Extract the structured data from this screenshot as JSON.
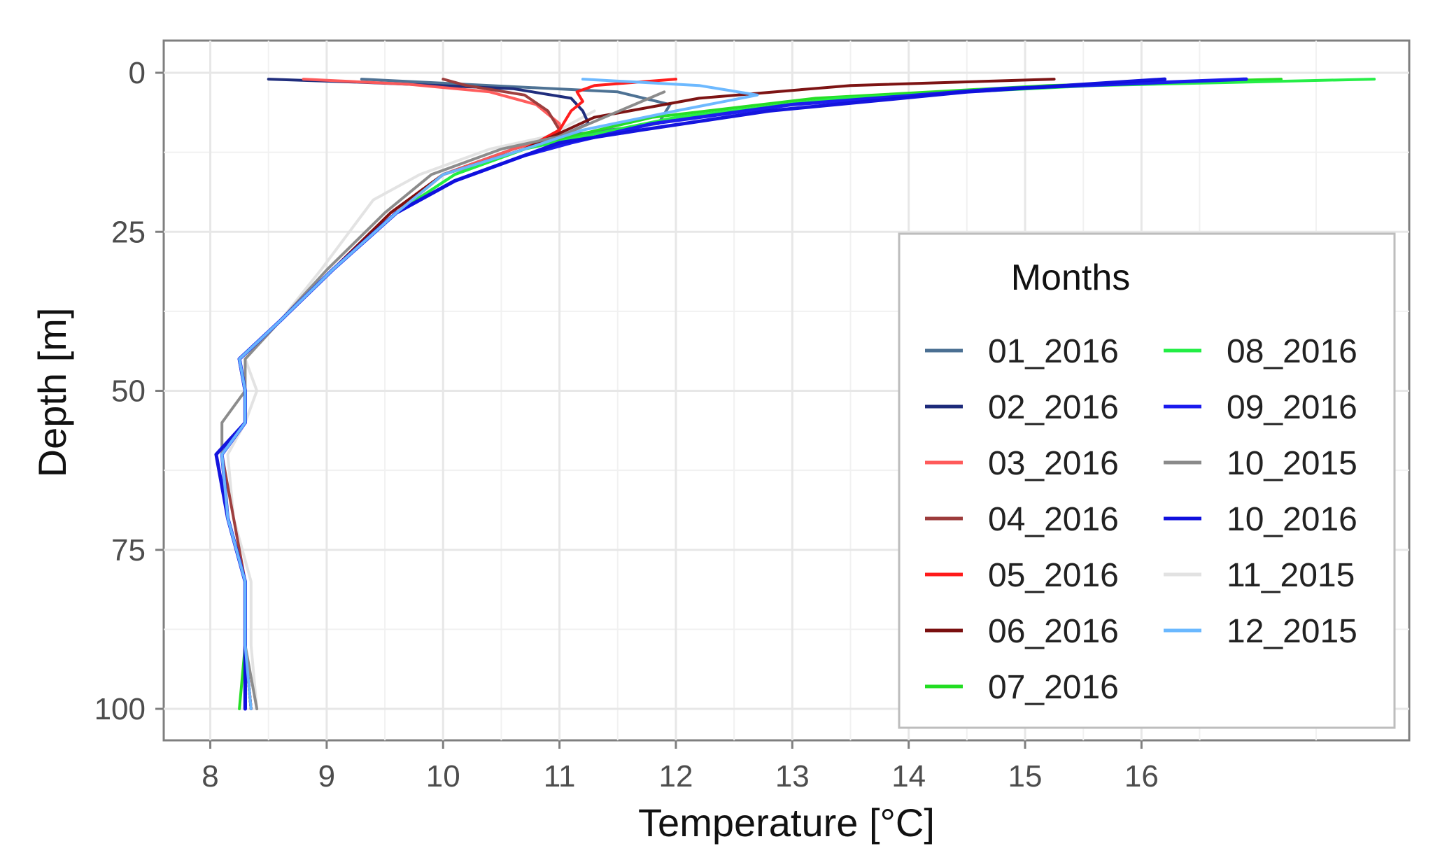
{
  "chart_data": {
    "type": "line",
    "orientation": "depth-profile",
    "title": "",
    "xlabel": "Temperature [°C]",
    "ylabel": "Depth [m]",
    "xlim": [
      7.6,
      18.3
    ],
    "ylim": [
      100,
      0
    ],
    "grid": true,
    "legend": {
      "title": "Months",
      "placement": "right"
    },
    "x_ticks": [
      {
        "value": 8,
        "label": "8"
      },
      {
        "value": 9,
        "label": "9"
      },
      {
        "value": 10,
        "label": "10"
      },
      {
        "value": 11,
        "label": "11"
      },
      {
        "value": 12,
        "label": "12"
      },
      {
        "value": 13,
        "label": "13"
      },
      {
        "value": 14,
        "label": "14"
      },
      {
        "value": 15,
        "label": "15"
      },
      {
        "value": 16,
        "label": "16"
      }
    ],
    "y_ticks": [
      {
        "value": 0,
        "label": "0"
      },
      {
        "value": 25,
        "label": "25"
      },
      {
        "value": 50,
        "label": "50"
      },
      {
        "value": 75,
        "label": "75"
      },
      {
        "value": 100,
        "label": "100"
      }
    ],
    "series": [
      {
        "name": "01_2016",
        "color": "#4a6f92",
        "points": [
          [
            9.3,
            1
          ],
          [
            10.4,
            2
          ],
          [
            11.5,
            3
          ],
          [
            11.95,
            5
          ],
          [
            11.85,
            8
          ],
          [
            11.0,
            10
          ],
          [
            10.6,
            12
          ],
          [
            10.0,
            16
          ],
          [
            9.6,
            22
          ],
          [
            9.05,
            31
          ],
          [
            8.6,
            39
          ],
          [
            8.25,
            45
          ],
          [
            8.3,
            50
          ],
          [
            8.3,
            55
          ],
          [
            8.1,
            60
          ],
          [
            8.15,
            70
          ],
          [
            8.3,
            80
          ],
          [
            8.3,
            90
          ],
          [
            8.35,
            100
          ]
        ]
      },
      {
        "name": "02_2016",
        "color": "#1c2a7a",
        "points": [
          [
            8.5,
            1
          ],
          [
            9.3,
            1.5
          ],
          [
            10.6,
            2.5
          ],
          [
            11.1,
            4
          ],
          [
            11.2,
            6
          ],
          [
            11.25,
            8
          ],
          [
            11.0,
            10
          ],
          [
            10.6,
            12
          ],
          [
            10.0,
            16
          ],
          [
            9.6,
            22
          ],
          [
            9.05,
            31
          ],
          [
            8.6,
            39
          ],
          [
            8.25,
            45
          ],
          [
            8.3,
            50
          ],
          [
            8.3,
            55
          ],
          [
            8.1,
            60
          ],
          [
            8.15,
            70
          ],
          [
            8.3,
            80
          ],
          [
            8.3,
            90
          ],
          [
            8.35,
            100
          ]
        ]
      },
      {
        "name": "03_2016",
        "color": "#ff5a5a",
        "points": [
          [
            8.8,
            1
          ],
          [
            9.7,
            1.8
          ],
          [
            10.4,
            3
          ],
          [
            10.8,
            5
          ],
          [
            11.0,
            8
          ],
          [
            11.0,
            10
          ],
          [
            10.6,
            12
          ],
          [
            10.0,
            16
          ],
          [
            9.6,
            22
          ],
          [
            9.05,
            31
          ],
          [
            8.6,
            39
          ],
          [
            8.25,
            45
          ],
          [
            8.3,
            50
          ],
          [
            8.3,
            55
          ],
          [
            8.1,
            60
          ],
          [
            8.15,
            70
          ],
          [
            8.3,
            80
          ],
          [
            8.3,
            90
          ],
          [
            8.35,
            100
          ]
        ]
      },
      {
        "name": "04_2016",
        "color": "#9c3b3b",
        "points": [
          [
            10.0,
            1
          ],
          [
            10.2,
            2
          ],
          [
            10.7,
            3.5
          ],
          [
            10.9,
            6
          ],
          [
            11.0,
            9
          ],
          [
            10.7,
            12
          ],
          [
            10.0,
            16
          ],
          [
            9.55,
            22
          ],
          [
            9.05,
            31
          ],
          [
            8.6,
            39
          ],
          [
            8.25,
            45
          ],
          [
            8.3,
            50
          ],
          [
            8.3,
            55
          ],
          [
            8.1,
            60
          ],
          [
            8.2,
            70
          ],
          [
            8.3,
            80
          ],
          [
            8.3,
            90
          ],
          [
            8.35,
            100
          ]
        ]
      },
      {
        "name": "05_2016",
        "color": "#ff1a1a",
        "points": [
          [
            12.0,
            1
          ],
          [
            11.3,
            2
          ],
          [
            11.15,
            3
          ],
          [
            11.2,
            4.5
          ],
          [
            11.1,
            6
          ],
          [
            11.0,
            9
          ],
          [
            10.7,
            12
          ],
          [
            10.0,
            16
          ],
          [
            9.55,
            22
          ],
          [
            9.05,
            31
          ],
          [
            8.6,
            39
          ],
          [
            8.25,
            45
          ],
          [
            8.3,
            50
          ],
          [
            8.3,
            55
          ],
          [
            8.1,
            60
          ],
          [
            8.15,
            70
          ],
          [
            8.3,
            80
          ],
          [
            8.3,
            90
          ],
          [
            8.35,
            100
          ]
        ]
      },
      {
        "name": "06_2016",
        "color": "#7a0f0f",
        "points": [
          [
            15.25,
            1
          ],
          [
            13.5,
            2
          ],
          [
            12.2,
            4
          ],
          [
            11.3,
            7
          ],
          [
            11.0,
            9.5
          ],
          [
            10.7,
            12
          ],
          [
            10.0,
            16
          ],
          [
            9.55,
            22
          ],
          [
            9.05,
            31
          ],
          [
            8.6,
            39
          ],
          [
            8.25,
            45
          ],
          [
            8.3,
            50
          ],
          [
            8.3,
            55
          ],
          [
            8.1,
            60
          ],
          [
            8.15,
            70
          ],
          [
            8.3,
            80
          ],
          [
            8.3,
            90
          ],
          [
            8.35,
            100
          ]
        ]
      },
      {
        "name": "07_2016",
        "color": "#22dd22",
        "points": [
          [
            17.2,
            1
          ],
          [
            15.2,
            2
          ],
          [
            13.2,
            4
          ],
          [
            11.8,
            7
          ],
          [
            11.1,
            10
          ],
          [
            10.7,
            12
          ],
          [
            10.1,
            16
          ],
          [
            9.6,
            22
          ],
          [
            9.05,
            31
          ],
          [
            8.6,
            39
          ],
          [
            8.25,
            45
          ],
          [
            8.3,
            50
          ],
          [
            8.3,
            55
          ],
          [
            8.1,
            60
          ],
          [
            8.15,
            70
          ],
          [
            8.3,
            80
          ],
          [
            8.3,
            90
          ],
          [
            8.25,
            100
          ]
        ]
      },
      {
        "name": "08_2016",
        "color": "#22ee44",
        "points": [
          [
            18.0,
            1
          ],
          [
            15.6,
            2
          ],
          [
            13.4,
            4
          ],
          [
            12.0,
            7
          ],
          [
            11.2,
            10
          ],
          [
            10.7,
            12
          ],
          [
            10.1,
            16
          ],
          [
            9.6,
            22
          ],
          [
            9.05,
            31
          ],
          [
            8.6,
            39
          ],
          [
            8.25,
            45
          ],
          [
            8.3,
            50
          ],
          [
            8.3,
            55
          ],
          [
            8.1,
            60
          ],
          [
            8.15,
            70
          ],
          [
            8.3,
            80
          ],
          [
            8.3,
            90
          ],
          [
            8.3,
            100
          ]
        ]
      },
      {
        "name": "09_2016",
        "color": "#1a1aee",
        "points": [
          [
            16.9,
            1
          ],
          [
            14.8,
            2.5
          ],
          [
            13.0,
            5
          ],
          [
            11.8,
            8
          ],
          [
            11.1,
            11
          ],
          [
            10.7,
            13
          ],
          [
            10.1,
            17
          ],
          [
            9.6,
            22
          ],
          [
            9.05,
            31
          ],
          [
            8.6,
            39
          ],
          [
            8.25,
            45
          ],
          [
            8.3,
            50
          ],
          [
            8.3,
            55
          ],
          [
            8.1,
            60
          ],
          [
            8.15,
            70
          ],
          [
            8.3,
            80
          ],
          [
            8.3,
            90
          ],
          [
            8.3,
            100
          ]
        ]
      },
      {
        "name": "10_2015",
        "color": "#8a8a8a",
        "points": [
          [
            11.9,
            3
          ],
          [
            11.0,
            10
          ],
          [
            10.5,
            12
          ],
          [
            9.9,
            16
          ],
          [
            9.5,
            22
          ],
          [
            9.0,
            31
          ],
          [
            8.6,
            39
          ],
          [
            8.3,
            45
          ],
          [
            8.3,
            50
          ],
          [
            8.1,
            55
          ],
          [
            8.1,
            60
          ],
          [
            8.15,
            70
          ],
          [
            8.3,
            80
          ],
          [
            8.3,
            90
          ],
          [
            8.4,
            100
          ]
        ]
      },
      {
        "name": "10_2016",
        "color": "#1010dd",
        "points": [
          [
            16.2,
            1
          ],
          [
            14.5,
            3
          ],
          [
            12.8,
            6
          ],
          [
            11.7,
            9
          ],
          [
            11.0,
            11
          ],
          [
            10.7,
            13
          ],
          [
            10.1,
            17
          ],
          [
            9.6,
            22
          ],
          [
            9.05,
            31
          ],
          [
            8.6,
            39
          ],
          [
            8.25,
            45
          ],
          [
            8.3,
            50
          ],
          [
            8.3,
            55
          ],
          [
            8.05,
            60
          ],
          [
            8.15,
            70
          ],
          [
            8.3,
            80
          ],
          [
            8.3,
            90
          ],
          [
            8.3,
            100
          ]
        ]
      },
      {
        "name": "11_2015",
        "color": "#e2e2e2",
        "points": [
          [
            11.3,
            6
          ],
          [
            10.9,
            10
          ],
          [
            10.4,
            12
          ],
          [
            9.8,
            16
          ],
          [
            9.4,
            20
          ],
          [
            8.95,
            31
          ],
          [
            8.6,
            39
          ],
          [
            8.3,
            45
          ],
          [
            8.4,
            50
          ],
          [
            8.3,
            55
          ],
          [
            8.15,
            60
          ],
          [
            8.2,
            70
          ],
          [
            8.35,
            80
          ],
          [
            8.35,
            90
          ],
          [
            8.4,
            100
          ]
        ]
      },
      {
        "name": "12_2015",
        "color": "#6ab8ff",
        "points": [
          [
            11.2,
            1
          ],
          [
            12.2,
            2
          ],
          [
            12.7,
            3.5
          ],
          [
            12.0,
            6
          ],
          [
            11.2,
            9
          ],
          [
            10.7,
            12
          ],
          [
            10.0,
            16
          ],
          [
            9.6,
            22
          ],
          [
            9.05,
            31
          ],
          [
            8.6,
            39
          ],
          [
            8.25,
            45
          ],
          [
            8.3,
            50
          ],
          [
            8.3,
            55
          ],
          [
            8.1,
            60
          ],
          [
            8.15,
            70
          ],
          [
            8.3,
            80
          ],
          [
            8.3,
            90
          ],
          [
            8.35,
            100
          ]
        ]
      }
    ]
  }
}
